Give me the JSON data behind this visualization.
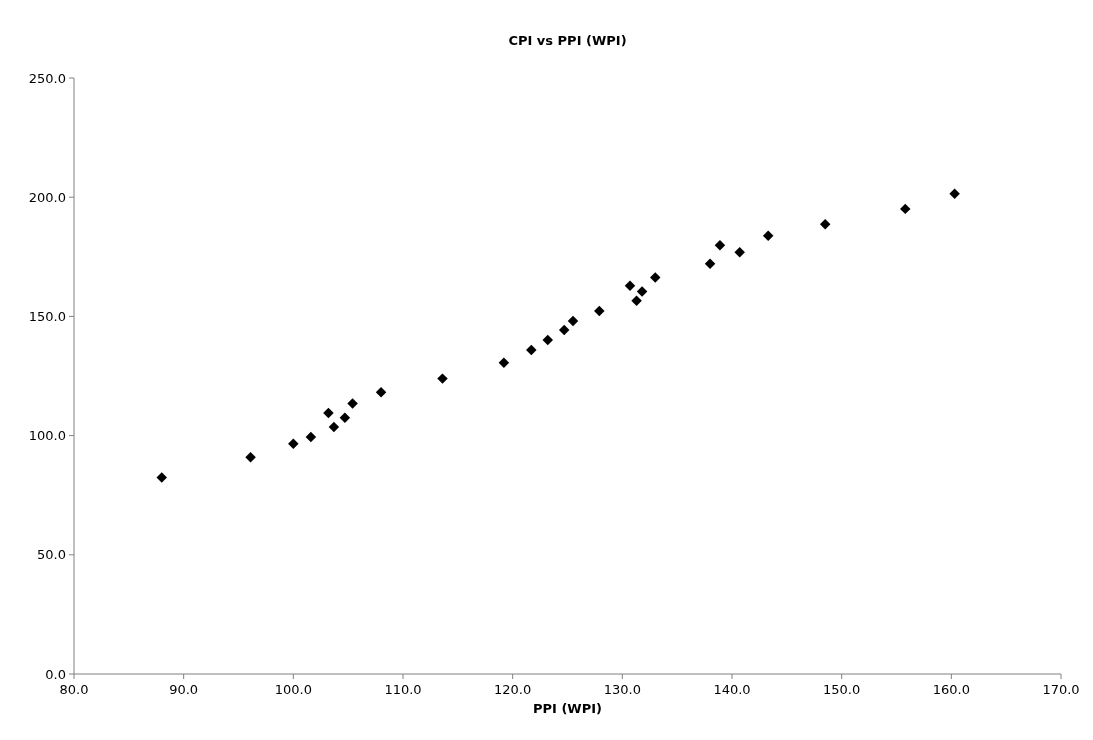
{
  "chart_data": {
    "type": "scatter",
    "title": "CPI vs PPI (WPI)",
    "xlabel": "PPI (WPI)",
    "x": [
      88.0,
      96.1,
      100.0,
      101.6,
      103.2,
      103.7,
      104.7,
      105.4,
      108.0,
      113.6,
      119.2,
      121.7,
      123.2,
      124.7,
      125.5,
      127.9,
      130.7,
      131.3,
      131.8,
      133.0,
      138.0,
      138.9,
      140.7,
      143.3,
      148.5,
      155.8,
      160.3
    ],
    "series": [
      {
        "color": "#000000",
        "values": [
          82.4,
          90.9,
          96.6,
          99.4,
          109.5,
          103.6,
          107.5,
          113.5,
          118.2,
          123.9,
          130.6,
          135.9,
          140.1,
          144.3,
          148.1,
          152.3,
          162.9,
          156.6,
          160.4,
          166.3,
          172.1,
          179.8,
          176.9,
          183.8,
          188.7,
          195.1,
          201.4
        ]
      }
    ],
    "xlim": [
      80,
      170
    ],
    "xticks": [
      {
        "value": 80,
        "label": "80.0"
      },
      {
        "value": 90,
        "label": "90.0"
      },
      {
        "value": 100,
        "label": "100.0"
      },
      {
        "value": 110,
        "label": "110.0"
      },
      {
        "value": 120,
        "label": "120.0"
      },
      {
        "value": 130,
        "label": "130.0"
      },
      {
        "value": 140,
        "label": "140.0"
      },
      {
        "value": 150,
        "label": "150.0"
      },
      {
        "value": 160,
        "label": "160.0"
      },
      {
        "value": 170,
        "label": "170.0"
      }
    ],
    "ylim": [
      0,
      250
    ],
    "yticks": [
      {
        "value": 0,
        "label": "0.0"
      },
      {
        "value": 50,
        "label": "50.0"
      },
      {
        "value": 100,
        "label": "100.0"
      },
      {
        "value": 150,
        "label": "150.0"
      },
      {
        "value": 200,
        "label": "200.0"
      },
      {
        "value": 250,
        "label": "250.0"
      }
    ],
    "marker": "diamond"
  }
}
